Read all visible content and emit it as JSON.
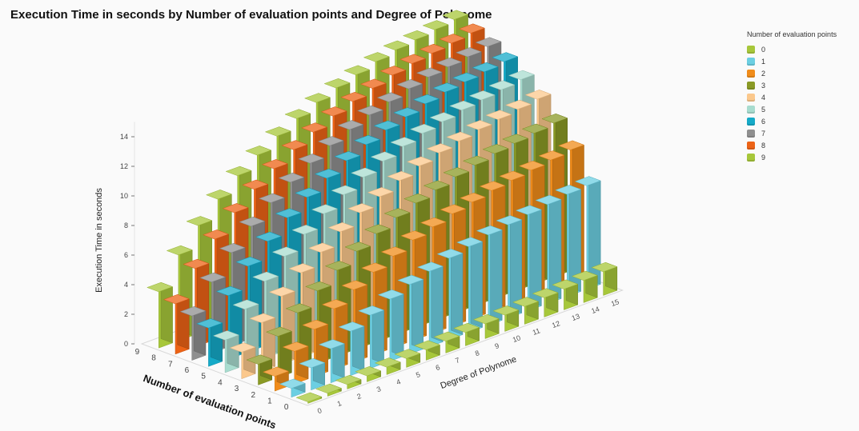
{
  "chart_data": {
    "type": "bar3d",
    "title": "Execution Time in seconds by Number of evaluation points and Degree of Polynome",
    "xlabel": "Degree of Polynome",
    "zlabel": "Number of evaluation points",
    "ylabel": "Execution Time in seconds",
    "x_categories": [
      "0",
      "1",
      "2",
      "3",
      "4",
      "5",
      "6",
      "7",
      "8",
      "9",
      "10",
      "11",
      "12",
      "13",
      "14",
      "15"
    ],
    "series_labels": [
      "0",
      "1",
      "2",
      "3",
      "4",
      "5",
      "6",
      "7",
      "8",
      "9"
    ],
    "y_ticks": [
      "0",
      "2",
      "4",
      "6",
      "8",
      "10",
      "12",
      "14"
    ],
    "ylim": [
      0,
      15
    ],
    "legend": {
      "title": "Number of evaluation points",
      "position": "top-right"
    },
    "colors": [
      "#a7c73a",
      "#6ccfe2",
      "#f08c1a",
      "#8a9a25",
      "#fbc88c",
      "#a8dccf",
      "#15aac8",
      "#8f8f8f",
      "#ec6316",
      "#a7c73a"
    ],
    "values": [
      [
        0.1,
        0.2,
        0.3,
        0.4,
        0.5,
        0.6,
        0.7,
        0.8,
        0.9,
        1.0,
        1.1,
        1.2,
        1.3,
        1.4,
        1.5,
        1.6
      ],
      [
        0.6,
        1.5,
        2.3,
        3.0,
        3.6,
        4.2,
        4.7,
        5.1,
        5.5,
        5.8,
        6.1,
        6.3,
        6.5,
        6.7,
        6.9,
        7.0
      ],
      [
        1.0,
        2.2,
        3.2,
        4.1,
        4.9,
        5.6,
        6.2,
        6.8,
        7.2,
        7.6,
        7.9,
        8.2,
        8.4,
        8.6,
        8.8,
        9.0
      ],
      [
        1.4,
        2.8,
        3.9,
        4.9,
        5.8,
        6.6,
        7.3,
        7.9,
        8.4,
        8.8,
        9.2,
        9.5,
        9.8,
        10.0,
        10.2,
        10.4
      ],
      [
        1.8,
        3.3,
        4.6,
        5.7,
        6.6,
        7.5,
        8.3,
        8.9,
        9.5,
        10.0,
        10.4,
        10.7,
        11.0,
        11.2,
        11.4,
        11.6
      ],
      [
        2.2,
        3.8,
        5.2,
        6.4,
        7.4,
        8.3,
        9.1,
        9.8,
        10.4,
        10.9,
        11.3,
        11.6,
        11.9,
        12.1,
        12.3,
        12.5
      ],
      [
        2.6,
        4.3,
        5.8,
        7.0,
        8.1,
        9.0,
        9.8,
        10.5,
        11.1,
        11.6,
        12.0,
        12.4,
        12.7,
        12.9,
        13.1,
        13.3
      ],
      [
        3.0,
        4.8,
        6.3,
        7.6,
        8.7,
        9.6,
        10.4,
        11.1,
        11.7,
        12.2,
        12.6,
        13.0,
        13.3,
        13.5,
        13.7,
        13.9
      ],
      [
        3.4,
        5.3,
        6.8,
        8.1,
        9.2,
        10.1,
        10.9,
        11.6,
        12.2,
        12.7,
        13.1,
        13.5,
        13.8,
        14.0,
        14.2,
        14.4
      ],
      [
        3.8,
        5.8,
        7.3,
        8.6,
        9.7,
        10.6,
        11.4,
        12.1,
        12.7,
        13.2,
        13.6,
        14.0,
        14.3,
        14.5,
        14.7,
        14.9
      ]
    ]
  }
}
